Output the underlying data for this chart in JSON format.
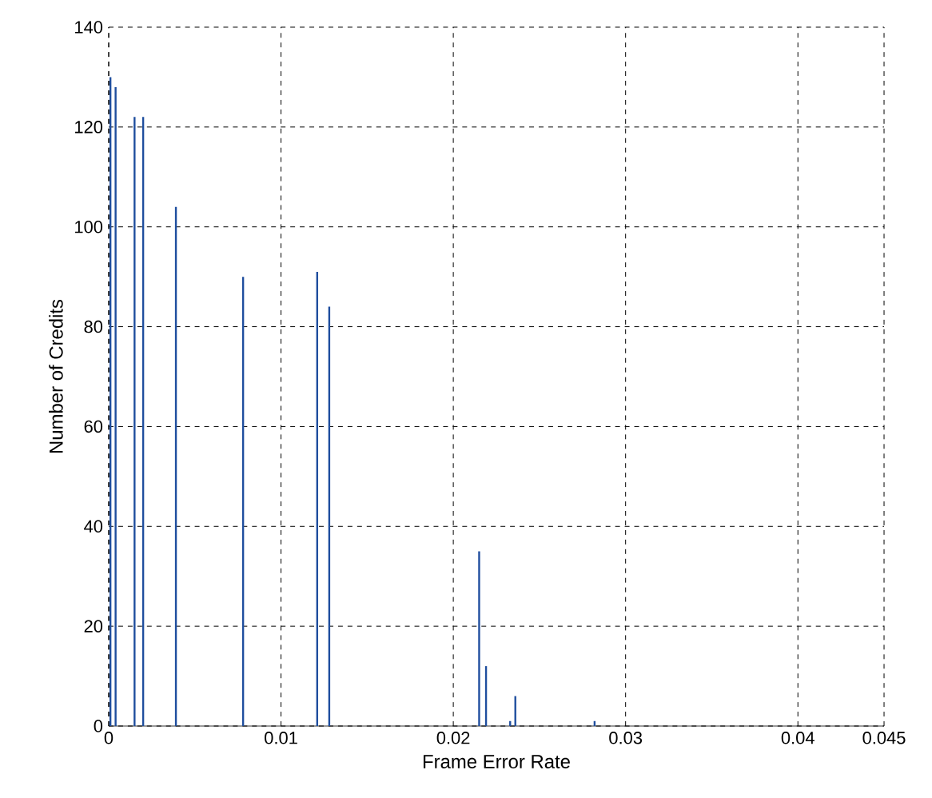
{
  "chart_data": {
    "type": "bar",
    "xlabel": "Frame Error Rate",
    "ylabel": "Number of Credits",
    "x": [
      0.0001,
      0.0004,
      0.0015,
      0.002,
      0.0039,
      0.0078,
      0.0121,
      0.0128,
      0.0215,
      0.0219,
      0.0233,
      0.0236,
      0.0282
    ],
    "values": [
      130,
      128,
      122,
      122,
      104,
      90,
      91,
      84,
      35,
      12,
      1,
      6,
      1
    ],
    "color": "#1f4e9e",
    "xlim": [
      0,
      0.045
    ],
    "xticks": [
      0,
      0.01,
      0.02,
      0.03,
      0.04,
      0.045
    ],
    "ylim": [
      0,
      140
    ],
    "yticks": [
      0,
      20,
      40,
      60,
      80,
      100,
      120,
      140
    ],
    "grid": true
  }
}
